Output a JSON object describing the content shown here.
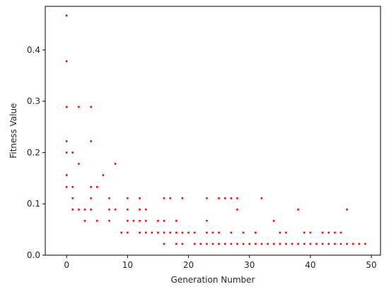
{
  "chart_data": {
    "type": "scatter",
    "title": "",
    "xlabel": "Generation Number",
    "ylabel": "Fitness Value",
    "xlim": [
      -3.5,
      51.5
    ],
    "ylim": [
      0.0,
      0.485
    ],
    "xticks": [
      0,
      10,
      20,
      30,
      40,
      50
    ],
    "xtick_labels": [
      "0",
      "10",
      "20",
      "30",
      "40",
      "50"
    ],
    "yticks": [
      0.0,
      0.1,
      0.2,
      0.3,
      0.4
    ],
    "ytick_labels": [
      "0.0",
      "0.1",
      "0.2",
      "0.3",
      "0.4"
    ],
    "grid": false,
    "marker_color": "#ff0000",
    "points": [
      [
        0,
        0.467
      ],
      [
        0,
        0.378
      ],
      [
        0,
        0.289
      ],
      [
        0,
        0.222
      ],
      [
        0,
        0.2
      ],
      [
        0,
        0.156
      ],
      [
        0,
        0.133
      ],
      [
        1,
        0.2
      ],
      [
        1,
        0.133
      ],
      [
        1,
        0.111
      ],
      [
        1,
        0.089
      ],
      [
        2,
        0.289
      ],
      [
        2,
        0.178
      ],
      [
        2,
        0.089
      ],
      [
        3,
        0.089
      ],
      [
        3,
        0.067
      ],
      [
        4,
        0.289
      ],
      [
        4,
        0.222
      ],
      [
        4,
        0.133
      ],
      [
        4,
        0.111
      ],
      [
        4,
        0.089
      ],
      [
        5,
        0.133
      ],
      [
        5,
        0.067
      ],
      [
        6,
        0.156
      ],
      [
        7,
        0.111
      ],
      [
        7,
        0.089
      ],
      [
        7,
        0.067
      ],
      [
        8,
        0.178
      ],
      [
        8,
        0.089
      ],
      [
        9,
        0.044
      ],
      [
        10,
        0.111
      ],
      [
        10,
        0.089
      ],
      [
        10,
        0.067
      ],
      [
        10,
        0.044
      ],
      [
        11,
        0.067
      ],
      [
        12,
        0.111
      ],
      [
        12,
        0.089
      ],
      [
        12,
        0.067
      ],
      [
        12,
        0.044
      ],
      [
        13,
        0.089
      ],
      [
        13,
        0.067
      ],
      [
        13,
        0.044
      ],
      [
        14,
        0.044
      ],
      [
        15,
        0.067
      ],
      [
        15,
        0.044
      ],
      [
        16,
        0.111
      ],
      [
        16,
        0.067
      ],
      [
        16,
        0.044
      ],
      [
        16,
        0.022
      ],
      [
        17,
        0.111
      ],
      [
        17,
        0.044
      ],
      [
        18,
        0.067
      ],
      [
        18,
        0.044
      ],
      [
        18,
        0.022
      ],
      [
        19,
        0.111
      ],
      [
        19,
        0.044
      ],
      [
        19,
        0.022
      ],
      [
        20,
        0.044
      ],
      [
        21,
        0.044
      ],
      [
        21,
        0.022
      ],
      [
        22,
        0.022
      ],
      [
        23,
        0.111
      ],
      [
        23,
        0.067
      ],
      [
        23,
        0.044
      ],
      [
        23,
        0.022
      ],
      [
        24,
        0.044
      ],
      [
        24,
        0.022
      ],
      [
        25,
        0.111
      ],
      [
        25,
        0.044
      ],
      [
        25,
        0.022
      ],
      [
        26,
        0.111
      ],
      [
        26,
        0.022
      ],
      [
        27,
        0.111
      ],
      [
        27,
        0.044
      ],
      [
        27,
        0.022
      ],
      [
        28,
        0.111
      ],
      [
        28,
        0.089
      ],
      [
        28,
        0.022
      ],
      [
        29,
        0.044
      ],
      [
        29,
        0.022
      ],
      [
        30,
        0.022
      ],
      [
        31,
        0.044
      ],
      [
        31,
        0.022
      ],
      [
        32,
        0.111
      ],
      [
        32,
        0.022
      ],
      [
        33,
        0.022
      ],
      [
        34,
        0.067
      ],
      [
        34,
        0.022
      ],
      [
        35,
        0.044
      ],
      [
        35,
        0.022
      ],
      [
        36,
        0.044
      ],
      [
        36,
        0.022
      ],
      [
        37,
        0.022
      ],
      [
        38,
        0.089
      ],
      [
        38,
        0.022
      ],
      [
        39,
        0.044
      ],
      [
        39,
        0.022
      ],
      [
        40,
        0.044
      ],
      [
        40,
        0.022
      ],
      [
        41,
        0.022
      ],
      [
        42,
        0.044
      ],
      [
        42,
        0.022
      ],
      [
        43,
        0.044
      ],
      [
        43,
        0.022
      ],
      [
        44,
        0.044
      ],
      [
        44,
        0.022
      ],
      [
        45,
        0.044
      ],
      [
        45,
        0.022
      ],
      [
        46,
        0.089
      ],
      [
        46,
        0.022
      ],
      [
        47,
        0.022
      ],
      [
        48,
        0.022
      ],
      [
        49,
        0.022
      ]
    ]
  }
}
